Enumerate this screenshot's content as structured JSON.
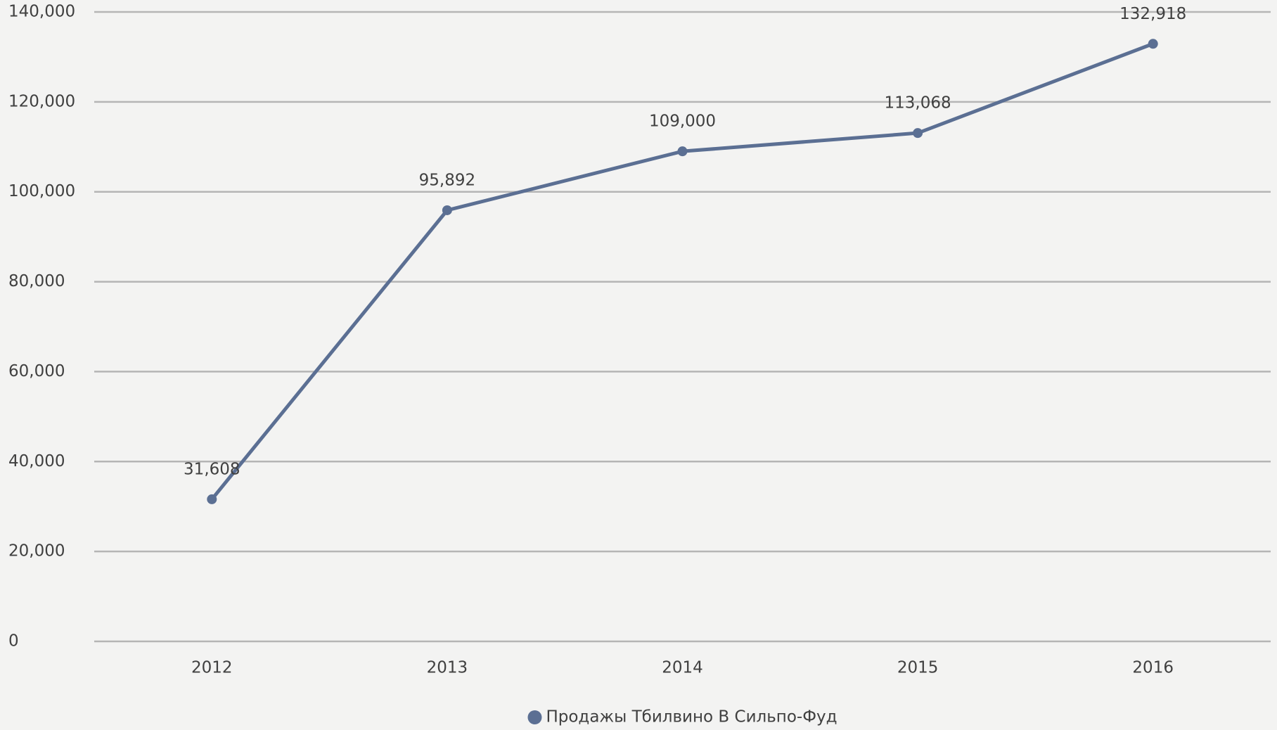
{
  "chart_data": {
    "type": "line",
    "categories": [
      "2012",
      "2013",
      "2014",
      "2015",
      "2016"
    ],
    "series": [
      {
        "name": "Продажы Тбилвино В Сильпо-Фуд",
        "color": "#5b6f93",
        "values": [
          31608,
          95892,
          109000,
          113068,
          132918
        ],
        "value_labels": [
          "31,608",
          "95,892",
          "109,000",
          "113,068",
          "132,918"
        ]
      }
    ],
    "ylim": [
      0,
      140000
    ],
    "yticks": [
      0,
      {
        "value": 20000,
        "label": "20,000"
      },
      {
        "value": 40000,
        "label": "40,000"
      },
      {
        "value": 60000,
        "label": "60,000"
      },
      {
        "value": 80000,
        "label": "80,000"
      },
      {
        "value": 100000,
        "label": "100,000"
      },
      {
        "value": 120000,
        "label": "120,000"
      },
      {
        "value": 140000,
        "label": "140,000"
      }
    ],
    "grid": true,
    "legend": "bottom"
  }
}
